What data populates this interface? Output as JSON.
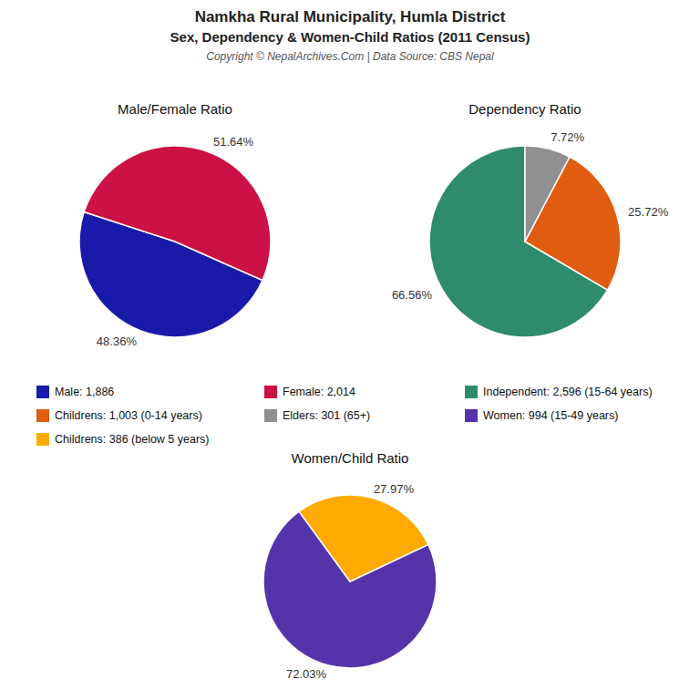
{
  "title": "Namkha Rural Municipality, Humla District",
  "subtitle": "Sex, Dependency & Women-Child Ratios (2011 Census)",
  "annotations": [
    "Copyright © NepalArchives.Com | Data Source: CBS Nepal"
  ],
  "chart_data": [
    {
      "type": "pie",
      "title": "Male/Female Ratio",
      "categories": [
        "Male: 1,886",
        "Female: 2,014"
      ],
      "values": [
        48.36,
        51.64
      ],
      "value_labels": [
        "48.36%",
        "51.64%"
      ],
      "colors": [
        "#1a1aaa",
        "#cc1144"
      ],
      "data_labels": true,
      "legend": "bottom"
    },
    {
      "type": "pie",
      "title": "Dependency Ratio",
      "categories": [
        "Independent: 2,596 (15-64 years)",
        "Childrens: 1,003 (0-14 years)",
        "Elders: 301 (65+)"
      ],
      "values": [
        66.56,
        25.72,
        7.72
      ],
      "value_labels": [
        "66.56%",
        "25.72%",
        "7.72%"
      ],
      "colors": [
        "#2e8b6e",
        "#e05c10",
        "#909090"
      ],
      "data_labels": true,
      "legend": "bottom"
    },
    {
      "type": "pie",
      "title": "Women/Child Ratio",
      "categories": [
        "Women: 994 (15-49 years)",
        "Childrens: 386 (below 5 years)"
      ],
      "values": [
        72.03,
        27.97
      ],
      "value_labels": [
        "72.03%",
        "27.97%"
      ],
      "colors": [
        "#5533aa",
        "#ffaa00"
      ],
      "data_labels": true,
      "legend": "top"
    }
  ]
}
